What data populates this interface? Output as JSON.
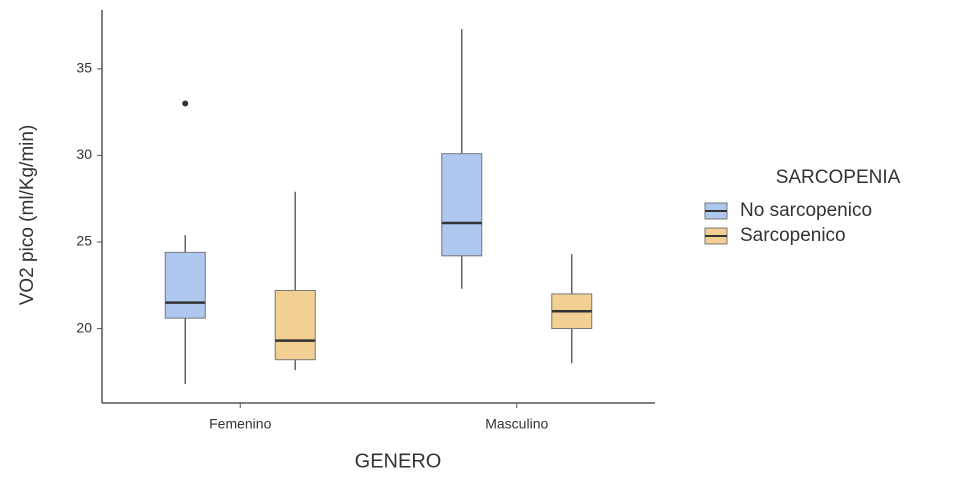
{
  "chart_data": {
    "type": "box",
    "x_label": "GENERO",
    "y_label": "VO2 pico (ml/Kg/min)",
    "categories": [
      "Femenino",
      "Masculino"
    ],
    "legend_title": "SARCOPENIA",
    "legend_position": "right",
    "series": [
      {
        "name": "No sarcopenico",
        "color": "#aec8f0",
        "boxes": [
          {
            "low": 16.8,
            "q1": 20.6,
            "median": 21.5,
            "q3": 24.4,
            "high": 25.4,
            "outliers": [
              33.0
            ]
          },
          {
            "low": 22.3,
            "q1": 24.2,
            "median": 26.1,
            "q3": 30.1,
            "high": 37.3,
            "outliers": []
          }
        ]
      },
      {
        "name": "Sarcopenico",
        "color": "#f2cf92",
        "boxes": [
          {
            "low": 17.6,
            "q1": 18.2,
            "median": 19.3,
            "q3": 22.2,
            "high": 27.9,
            "outliers": []
          },
          {
            "low": 18.0,
            "q1": 20.0,
            "median": 21.0,
            "q3": 22.0,
            "high": 24.3,
            "outliers": []
          }
        ]
      }
    ],
    "ylim": [
      15.7,
      38.4
    ],
    "yticks": [
      20,
      25,
      30,
      35
    ],
    "grid": false
  }
}
